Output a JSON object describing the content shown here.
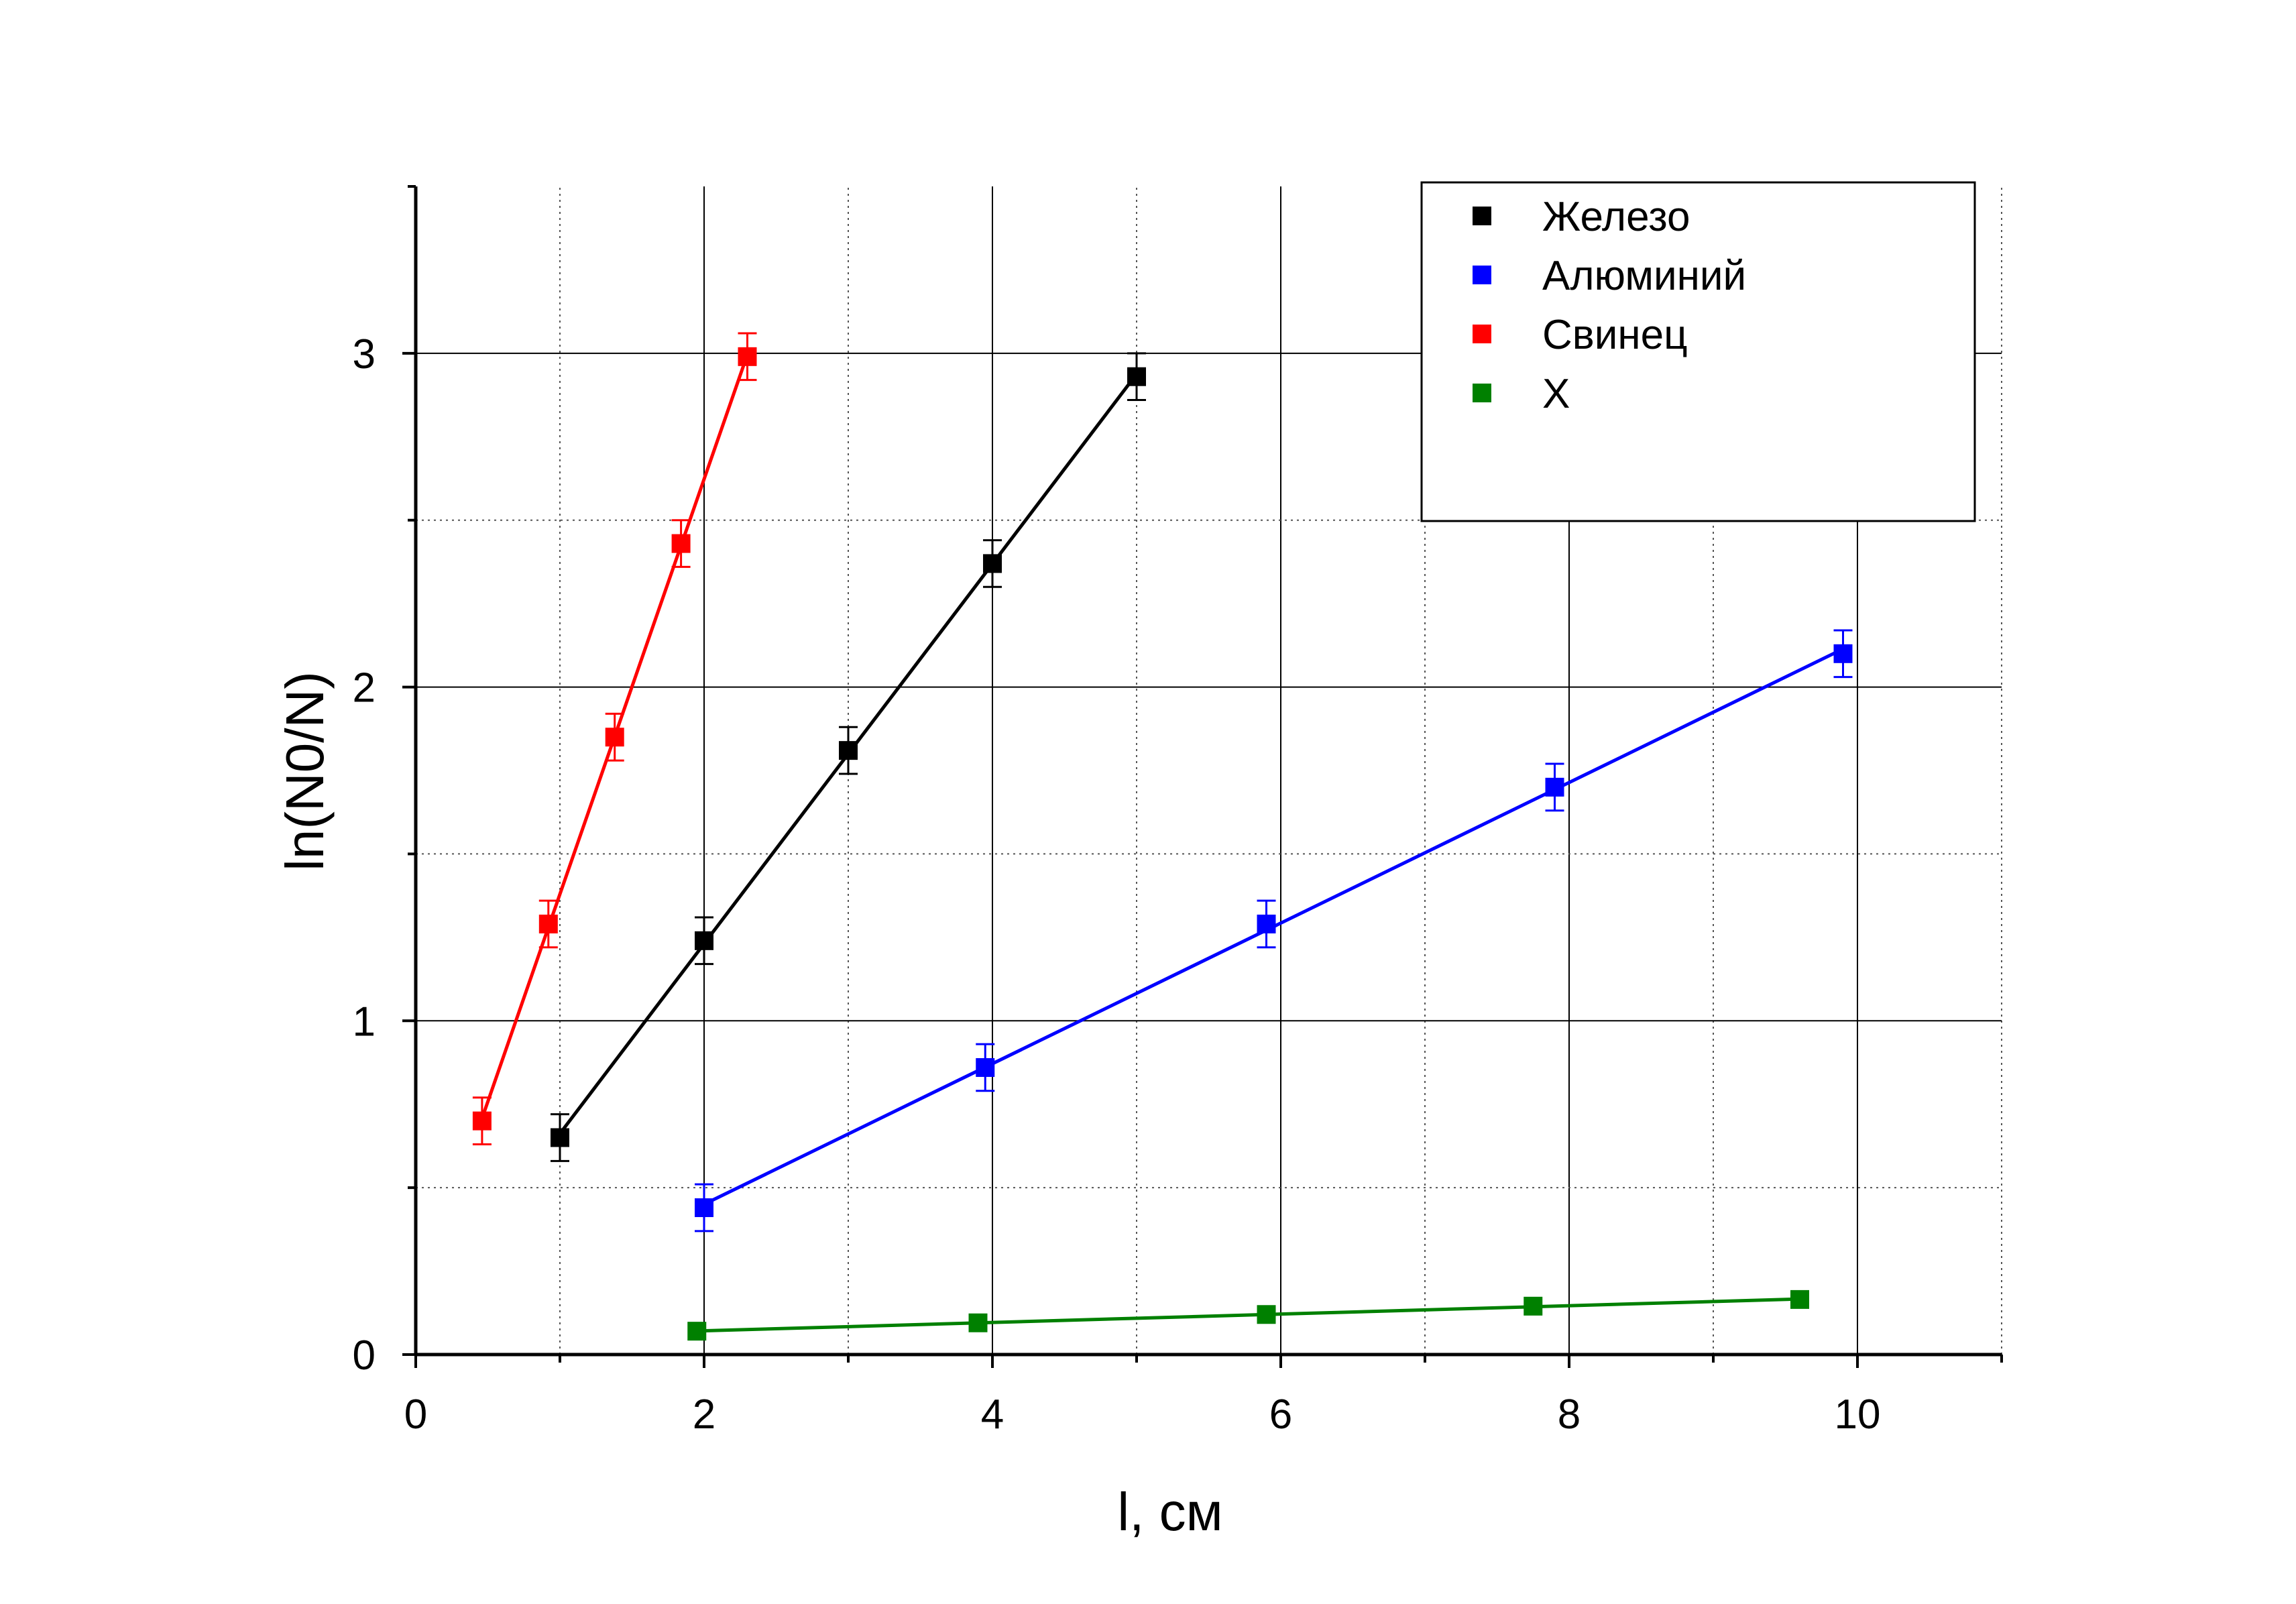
{
  "chart_data": {
    "type": "scatter",
    "xlabel": "l, см",
    "ylabel": "ln(N0/N)",
    "xlim": [
      0,
      11
    ],
    "ylim": [
      0,
      3.5
    ],
    "x_ticks": [
      "0",
      "2",
      "4",
      "6",
      "8",
      "10"
    ],
    "y_ticks": [
      "0",
      "1",
      "2",
      "3"
    ],
    "grid": true,
    "legend": {
      "position": "top-right",
      "entries": [
        "Железо",
        "Алюминий",
        "Свинец",
        "X"
      ]
    },
    "series": [
      {
        "name": "Железо",
        "color": "#000000",
        "x": [
          1.0,
          2.0,
          3.0,
          4.0,
          5.0
        ],
        "y": [
          0.65,
          1.24,
          1.81,
          2.37,
          2.93
        ],
        "error": [
          0.07,
          0.07,
          0.07,
          0.07,
          0.07
        ],
        "fit_line": true
      },
      {
        "name": "Алюминий",
        "color": "#0000ff",
        "x": [
          2.0,
          3.95,
          5.9,
          7.9,
          9.9
        ],
        "y": [
          0.44,
          0.86,
          1.29,
          1.7,
          2.1
        ],
        "error": [
          0.07,
          0.07,
          0.07,
          0.07,
          0.07
        ],
        "fit_line": true
      },
      {
        "name": "Свинец",
        "color": "#ff0000",
        "x": [
          0.46,
          0.92,
          1.38,
          1.84,
          2.3
        ],
        "y": [
          0.7,
          1.29,
          1.85,
          2.43,
          2.99
        ],
        "error": [
          0.07,
          0.07,
          0.07,
          0.07,
          0.07
        ],
        "fit_line": true
      },
      {
        "name": "X",
        "color": "#008000",
        "x": [
          1.95,
          3.9,
          5.9,
          7.75,
          9.6
        ],
        "y": [
          0.07,
          0.095,
          0.12,
          0.145,
          0.165
        ],
        "error": [
          0.0,
          0.0,
          0.0,
          0.0,
          0.0
        ],
        "fit_line": true
      }
    ]
  }
}
